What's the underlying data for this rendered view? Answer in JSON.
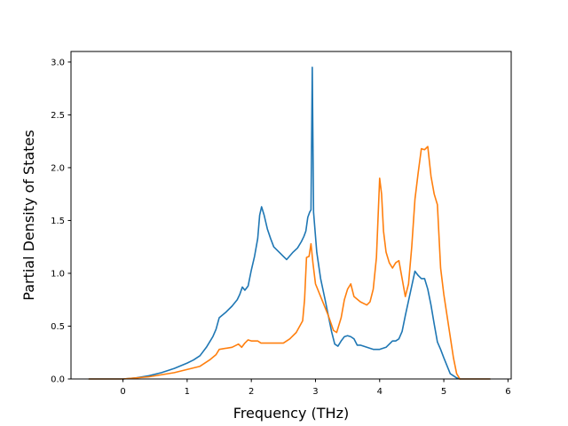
{
  "chart_data": {
    "type": "line",
    "title": "",
    "xlabel": "Frequency (THz)",
    "ylabel": "Partial Density of States",
    "xlim": [
      -0.81,
      6.05
    ],
    "ylim": [
      0.0,
      3.1
    ],
    "xticks": [
      "0",
      "1",
      "2",
      "3",
      "4",
      "5",
      "6"
    ],
    "yticks": [
      "0.0",
      "0.5",
      "1.0",
      "1.5",
      "2.0",
      "2.5",
      "3.0"
    ],
    "grid": false,
    "legend": "none",
    "series": [
      {
        "color": "#1f77b4",
        "x": [
          -0.53,
          -0.3,
          0.0,
          0.2,
          0.4,
          0.6,
          0.8,
          1.0,
          1.1,
          1.2,
          1.3,
          1.4,
          1.45,
          1.5,
          1.6,
          1.7,
          1.78,
          1.82,
          1.86,
          1.9,
          1.95,
          2.0,
          2.05,
          2.1,
          2.13,
          2.16,
          2.2,
          2.25,
          2.3,
          2.35,
          2.45,
          2.5,
          2.55,
          2.65,
          2.72,
          2.78,
          2.82,
          2.85,
          2.88,
          2.91,
          2.93,
          2.95,
          2.97,
          3.02,
          3.08,
          3.15,
          3.2,
          3.25,
          3.3,
          3.35,
          3.4,
          3.45,
          3.5,
          3.55,
          3.6,
          3.65,
          3.7,
          3.8,
          3.9,
          4.0,
          4.1,
          4.2,
          4.25,
          4.3,
          4.35,
          4.4,
          4.45,
          4.5,
          4.55,
          4.6,
          4.65,
          4.7,
          4.75,
          4.8,
          4.85,
          4.9,
          4.95,
          5.0,
          5.1,
          5.2,
          5.25,
          5.3,
          5.5,
          5.72
        ],
        "y": [
          0.0,
          0.0,
          0.0,
          0.01,
          0.03,
          0.06,
          0.1,
          0.15,
          0.18,
          0.22,
          0.3,
          0.4,
          0.47,
          0.58,
          0.63,
          0.69,
          0.75,
          0.8,
          0.87,
          0.84,
          0.88,
          1.03,
          1.16,
          1.33,
          1.55,
          1.63,
          1.55,
          1.42,
          1.33,
          1.25,
          1.19,
          1.16,
          1.13,
          1.2,
          1.24,
          1.3,
          1.35,
          1.4,
          1.53,
          1.58,
          1.6,
          2.95,
          1.58,
          1.2,
          0.95,
          0.75,
          0.6,
          0.45,
          0.33,
          0.31,
          0.36,
          0.4,
          0.41,
          0.4,
          0.38,
          0.32,
          0.32,
          0.3,
          0.28,
          0.28,
          0.3,
          0.36,
          0.36,
          0.38,
          0.45,
          0.6,
          0.74,
          0.88,
          1.02,
          0.98,
          0.95,
          0.95,
          0.85,
          0.7,
          0.52,
          0.35,
          0.28,
          0.2,
          0.05,
          0.01,
          0.0,
          0.0,
          0.0,
          0.0
        ]
      },
      {
        "color": "#ff7f0e",
        "x": [
          -0.53,
          -0.3,
          0.0,
          0.4,
          0.8,
          1.2,
          1.35,
          1.45,
          1.5,
          1.7,
          1.8,
          1.85,
          1.9,
          1.95,
          2.0,
          2.1,
          2.15,
          2.2,
          2.5,
          2.6,
          2.7,
          2.8,
          2.83,
          2.86,
          2.9,
          2.93,
          2.96,
          3.0,
          3.1,
          3.2,
          3.28,
          3.33,
          3.4,
          3.45,
          3.5,
          3.55,
          3.6,
          3.7,
          3.8,
          3.85,
          3.9,
          3.95,
          4.0,
          4.03,
          4.06,
          4.1,
          4.15,
          4.2,
          4.25,
          4.3,
          4.35,
          4.4,
          4.45,
          4.5,
          4.55,
          4.6,
          4.65,
          4.7,
          4.75,
          4.8,
          4.85,
          4.9,
          4.95,
          5.0,
          5.05,
          5.1,
          5.15,
          5.2,
          5.25,
          5.3,
          5.5,
          5.72
        ],
        "y": [
          0.0,
          0.0,
          0.0,
          0.02,
          0.06,
          0.12,
          0.18,
          0.23,
          0.28,
          0.3,
          0.33,
          0.3,
          0.34,
          0.37,
          0.36,
          0.36,
          0.34,
          0.34,
          0.34,
          0.38,
          0.44,
          0.55,
          0.75,
          1.15,
          1.16,
          1.28,
          1.1,
          0.9,
          0.75,
          0.6,
          0.46,
          0.44,
          0.58,
          0.75,
          0.85,
          0.9,
          0.78,
          0.73,
          0.7,
          0.73,
          0.85,
          1.15,
          1.9,
          1.75,
          1.4,
          1.2,
          1.1,
          1.05,
          1.1,
          1.12,
          0.95,
          0.78,
          0.9,
          1.25,
          1.7,
          1.95,
          2.18,
          2.17,
          2.2,
          1.92,
          1.75,
          1.65,
          1.05,
          0.8,
          0.6,
          0.4,
          0.2,
          0.05,
          0.0,
          0.0,
          0.0,
          0.0
        ]
      }
    ]
  }
}
